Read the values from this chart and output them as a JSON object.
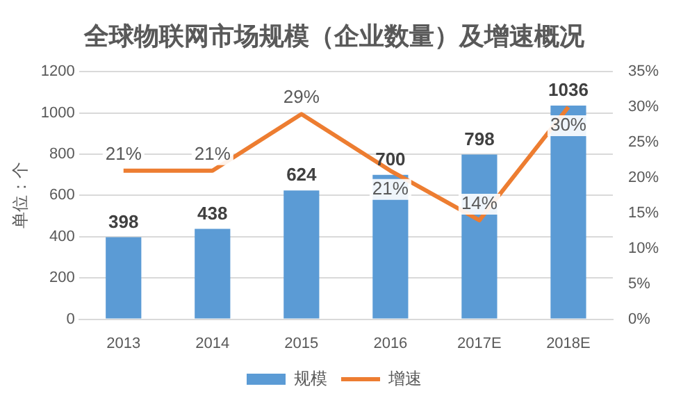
{
  "chart_data": {
    "type": "bar",
    "title": "全球物联网市场规模（企业数量）及增速概况",
    "ylabel": "单位：个",
    "categories": [
      "2013",
      "2014",
      "2015",
      "2016",
      "2017E",
      "2018E"
    ],
    "series": [
      {
        "name": "规模",
        "type": "bar",
        "color": "#5b9bd5",
        "values": [
          398,
          438,
          624,
          700,
          798,
          1036
        ],
        "value_labels": [
          "398",
          "438",
          "624",
          "700",
          "798",
          "1036"
        ]
      },
      {
        "name": "增速",
        "type": "line",
        "axis": "y2",
        "color": "#ed7d31",
        "marker": "none",
        "values": [
          21,
          21,
          29,
          21,
          14,
          30
        ],
        "value_labels": [
          "21%",
          "21%",
          "29%",
          "21%",
          "14%",
          "30%"
        ]
      }
    ],
    "ylim": [
      0,
      1200
    ],
    "yticks": [
      0,
      200,
      400,
      600,
      800,
      1000,
      1200
    ],
    "y2lim": [
      0,
      35
    ],
    "y2ticks": [
      {
        "value": 0,
        "label": "0%"
      },
      {
        "value": 5,
        "label": "5%"
      },
      {
        "value": 10,
        "label": "10%"
      },
      {
        "value": 15,
        "label": "15%"
      },
      {
        "value": 20,
        "label": "20%"
      },
      {
        "value": 25,
        "label": "25%"
      },
      {
        "value": 30,
        "label": "30%"
      },
      {
        "value": 35,
        "label": "35%"
      }
    ],
    "grid": "y",
    "legend": "bottom"
  }
}
